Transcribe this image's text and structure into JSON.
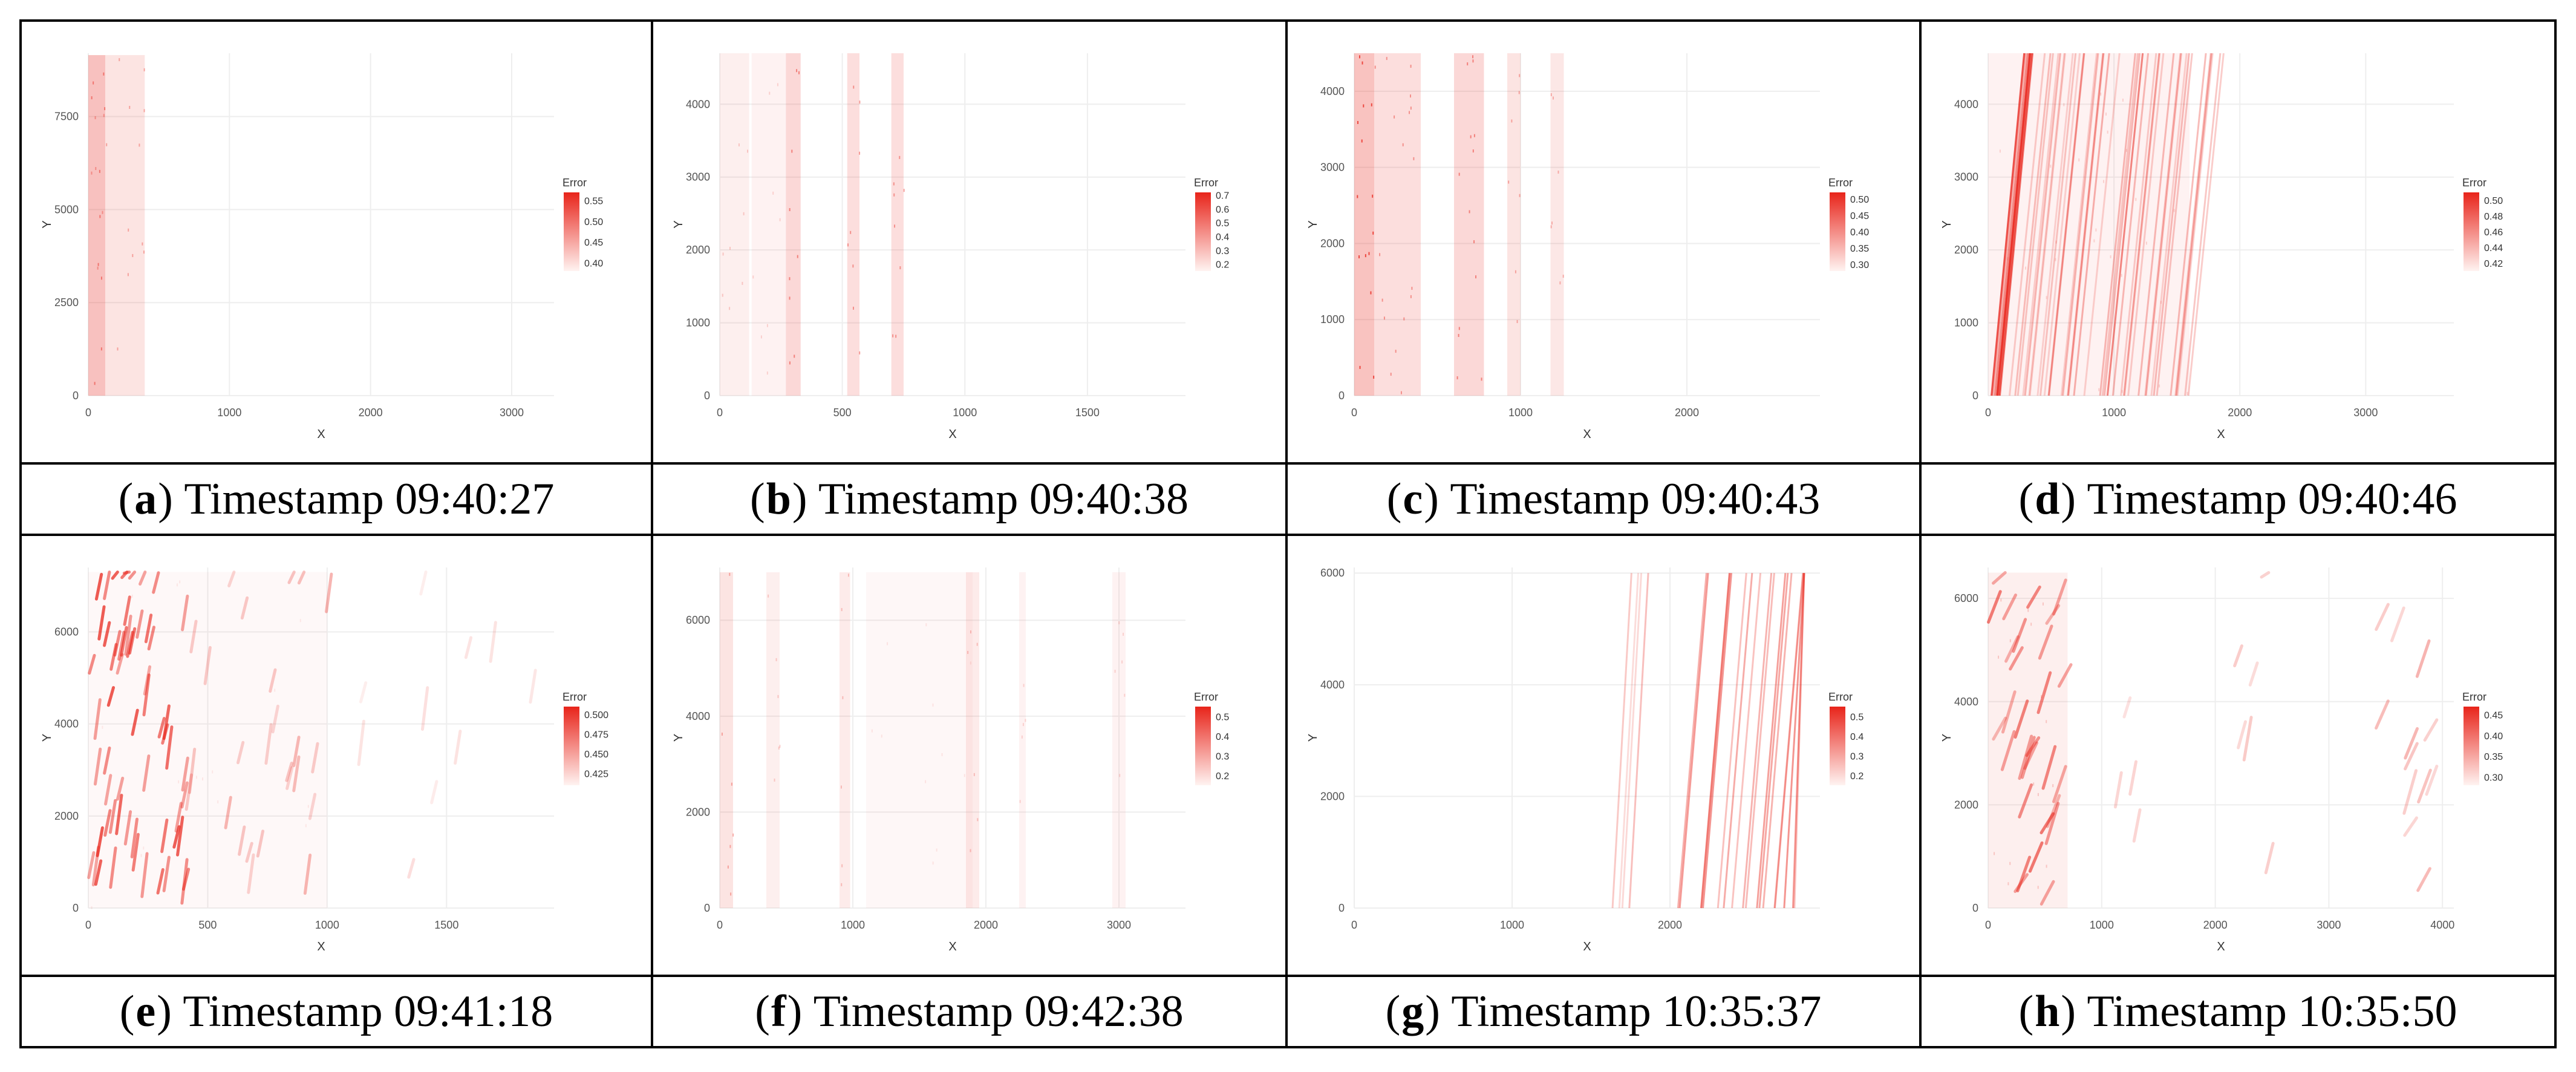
{
  "colors": {
    "high": "#e8241a",
    "low": "#ffffff",
    "grid": "#eeeeee",
    "tick": "#555555"
  },
  "panels": [
    {
      "id": "a",
      "caption": "Timestamp 09:40:27",
      "chart_data": {
        "type": "heatmap",
        "xlabel": "X",
        "ylabel": "Y",
        "xlim": [
          0,
          3300
        ],
        "ylim": [
          0,
          9200
        ],
        "xticks": [
          0,
          1000,
          2000,
          3000
        ],
        "yticks": [
          0,
          2500,
          5000,
          7500
        ],
        "data_extent": {
          "x": [
            0,
            3200
          ],
          "y": [
            0,
            9150
          ]
        },
        "legend": {
          "title": "Error",
          "ticks": [
            "0.55",
            "0.50",
            "0.45",
            "0.40"
          ],
          "min": 0.38,
          "max": 0.57,
          "position": "right"
        },
        "pattern": "diffuse vertical band at left",
        "regions": [
          {
            "x": [
              0,
              400
            ],
            "intensity": 0.25
          },
          {
            "x": [
              0,
              120
            ],
            "intensity": 0.35
          }
        ],
        "streaks": []
      }
    },
    {
      "id": "b",
      "caption": "Timestamp 09:40:38",
      "chart_data": {
        "type": "heatmap",
        "xlabel": "X",
        "ylabel": "Y",
        "xlim": [
          0,
          1900
        ],
        "ylim": [
          0,
          4700
        ],
        "xticks": [
          0,
          500,
          1000,
          1500
        ],
        "yticks": [
          0,
          1000,
          2000,
          3000,
          4000
        ],
        "data_extent": {
          "x": [
            0,
            1850
          ],
          "y": [
            0,
            4700
          ]
        },
        "legend": {
          "title": "Error",
          "ticks": [
            "0.7",
            "0.6",
            "0.5",
            "0.4",
            "0.3",
            "0.2"
          ],
          "min": 0.15,
          "max": 0.72,
          "position": "right"
        },
        "pattern": "vertical stripes",
        "regions": [
          {
            "x": [
              0,
              120
            ],
            "intensity": 0.15
          },
          {
            "x": [
              270,
              330
            ],
            "intensity": 0.35
          },
          {
            "x": [
              520,
              570
            ],
            "intensity": 0.3
          },
          {
            "x": [
              700,
              750
            ],
            "intensity": 0.3
          },
          {
            "x": [
              130,
              270
            ],
            "intensity": 0.12
          }
        ],
        "streaks": []
      }
    },
    {
      "id": "c",
      "caption": "Timestamp 09:40:43",
      "chart_data": {
        "type": "heatmap",
        "xlabel": "X",
        "ylabel": "Y",
        "xlim": [
          0,
          2800
        ],
        "ylim": [
          0,
          4500
        ],
        "xticks": [
          0,
          1000,
          2000
        ],
        "yticks": [
          0,
          1000,
          2000,
          3000,
          4000
        ],
        "data_extent": {
          "x": [
            0,
            2700
          ],
          "y": [
            0,
            4500
          ]
        },
        "legend": {
          "title": "Error",
          "ticks": [
            "0.50",
            "0.45",
            "0.40",
            "0.35",
            "0.30"
          ],
          "min": 0.28,
          "max": 0.52,
          "position": "right"
        },
        "pattern": "vertical stripes",
        "regions": [
          {
            "x": [
              0,
              120
            ],
            "intensity": 0.55
          },
          {
            "x": [
              120,
              400
            ],
            "intensity": 0.3
          },
          {
            "x": [
              600,
              780
            ],
            "intensity": 0.35
          },
          {
            "x": [
              920,
              1000
            ],
            "intensity": 0.25
          },
          {
            "x": [
              1180,
              1260
            ],
            "intensity": 0.22
          }
        ],
        "streaks": []
      }
    },
    {
      "id": "d",
      "caption": "Timestamp 09:40:46",
      "chart_data": {
        "type": "heatmap",
        "xlabel": "X",
        "ylabel": "Y",
        "xlim": [
          0,
          3700
        ],
        "ylim": [
          0,
          4700
        ],
        "xticks": [
          0,
          1000,
          2000,
          3000
        ],
        "yticks": [
          0,
          1000,
          2000,
          3000,
          4000
        ],
        "data_extent": {
          "x": [
            0,
            3600
          ],
          "y": [
            0,
            4700
          ]
        },
        "legend": {
          "title": "Error",
          "ticks": [
            "0.50",
            "0.48",
            "0.46",
            "0.44",
            "0.42"
          ],
          "min": 0.41,
          "max": 0.51,
          "position": "right"
        },
        "pattern": "diagonal streaks",
        "regions": [
          {
            "x": [
              0,
              1600
            ],
            "intensity": 0.12
          }
        ],
        "streaks": [
          {
            "x0": 0,
            "x1": 100,
            "n": 10,
            "dx": 260,
            "intensity": 0.7
          },
          {
            "x0": 120,
            "x1": 1600,
            "n": 40,
            "dx": 280,
            "intensity": 0.35
          }
        ]
      }
    },
    {
      "id": "e",
      "caption": "Timestamp 09:41:18",
      "chart_data": {
        "type": "heatmap",
        "xlabel": "X",
        "ylabel": "Y",
        "xlim": [
          0,
          1950
        ],
        "ylim": [
          0,
          7400
        ],
        "xticks": [
          0,
          500,
          1000,
          1500
        ],
        "yticks": [
          0,
          2000,
          4000,
          6000
        ],
        "data_extent": {
          "x": [
            0,
            1900
          ],
          "y": [
            0,
            7300
          ]
        },
        "legend": {
          "title": "Error",
          "ticks": [
            "0.500",
            "0.475",
            "0.450",
            "0.425"
          ],
          "min": 0.41,
          "max": 0.51,
          "position": "right"
        },
        "pattern": "short diagonal dashes",
        "regions": [
          {
            "x": [
              0,
              1000
            ],
            "intensity": 0.06
          }
        ],
        "streaks": [
          {
            "x0": 0,
            "x1": 400,
            "n": 60,
            "dx": 60,
            "dash": true,
            "intensity": 0.75
          },
          {
            "x0": 400,
            "x1": 1000,
            "n": 25,
            "dx": 60,
            "dash": true,
            "intensity": 0.35
          },
          {
            "x0": 1000,
            "x1": 1900,
            "n": 10,
            "dx": 60,
            "dash": true,
            "intensity": 0.15
          }
        ]
      }
    },
    {
      "id": "f",
      "caption": "Timestamp 09:42:38",
      "chart_data": {
        "type": "heatmap",
        "xlabel": "X",
        "ylabel": "Y",
        "xlim": [
          0,
          3500
        ],
        "ylim": [
          0,
          7100
        ],
        "xticks": [
          0,
          1000,
          2000,
          3000
        ],
        "yticks": [
          0,
          2000,
          4000,
          6000
        ],
        "data_extent": {
          "x": [
            0,
            3100
          ],
          "y": [
            0,
            7000
          ]
        },
        "legend": {
          "title": "Error",
          "ticks": [
            "0.5",
            "0.4",
            "0.3",
            "0.2"
          ],
          "min": 0.15,
          "max": 0.55,
          "position": "right"
        },
        "pattern": "vertical stripes",
        "regions": [
          {
            "x": [
              0,
              100
            ],
            "intensity": 0.25
          },
          {
            "x": [
              350,
              450
            ],
            "intensity": 0.15
          },
          {
            "x": [
              900,
              980
            ],
            "intensity": 0.18
          },
          {
            "x": [
              1100,
              1900
            ],
            "intensity": 0.07
          },
          {
            "x": [
              1850,
              1950
            ],
            "intensity": 0.18
          },
          {
            "x": [
              2250,
              2300
            ],
            "intensity": 0.12
          },
          {
            "x": [
              2950,
              3050
            ],
            "intensity": 0.12
          }
        ],
        "streaks": []
      }
    },
    {
      "id": "g",
      "caption": "Timestamp 10:35:37",
      "chart_data": {
        "type": "heatmap",
        "xlabel": "X",
        "ylabel": "Y",
        "xlim": [
          0,
          2950
        ],
        "ylim": [
          0,
          6100
        ],
        "xticks": [
          0,
          1000,
          2000
        ],
        "yticks": [
          0,
          2000,
          4000,
          6000
        ],
        "data_extent": {
          "x": [
            0,
            2850
          ],
          "y": [
            0,
            6000
          ]
        },
        "legend": {
          "title": "Error",
          "ticks": [
            "0.5",
            "0.4",
            "0.3",
            "0.2"
          ],
          "min": 0.15,
          "max": 0.55,
          "position": "right"
        },
        "pattern": "diagonal streaks at right",
        "regions": [],
        "streaks": [
          {
            "x0": 1600,
            "x1": 1750,
            "n": 4,
            "dx": 120,
            "intensity": 0.3
          },
          {
            "x0": 2050,
            "x1": 2800,
            "n": 18,
            "dx": 180,
            "intensity": 0.5
          }
        ]
      }
    },
    {
      "id": "h",
      "caption": "Timestamp 10:35:50",
      "chart_data": {
        "type": "heatmap",
        "xlabel": "X",
        "ylabel": "Y",
        "xlim": [
          0,
          4100
        ],
        "ylim": [
          0,
          6600
        ],
        "xticks": [
          0,
          1000,
          2000,
          3000,
          4000
        ],
        "yticks": [
          0,
          2000,
          4000,
          6000
        ],
        "data_extent": {
          "x": [
            0,
            3950
          ],
          "y": [
            0,
            6500
          ]
        },
        "legend": {
          "title": "Error",
          "ticks": [
            "0.45",
            "0.40",
            "0.35",
            "0.30"
          ],
          "min": 0.28,
          "max": 0.47,
          "position": "right"
        },
        "pattern": "clustered streaks",
        "regions": [
          {
            "x": [
              0,
              700
            ],
            "intensity": 0.15
          }
        ],
        "streaks": [
          {
            "x0": 0,
            "x1": 650,
            "n": 30,
            "dx": 300,
            "dash": true,
            "intensity": 0.6
          },
          {
            "x0": 1100,
            "x1": 1300,
            "n": 4,
            "dx": 150,
            "dash": true,
            "intensity": 0.25
          },
          {
            "x0": 2100,
            "x1": 2500,
            "n": 6,
            "dx": 180,
            "dash": true,
            "intensity": 0.3
          },
          {
            "x0": 3400,
            "x1": 3900,
            "n": 12,
            "dx": 300,
            "dash": true,
            "intensity": 0.35
          }
        ]
      }
    }
  ]
}
